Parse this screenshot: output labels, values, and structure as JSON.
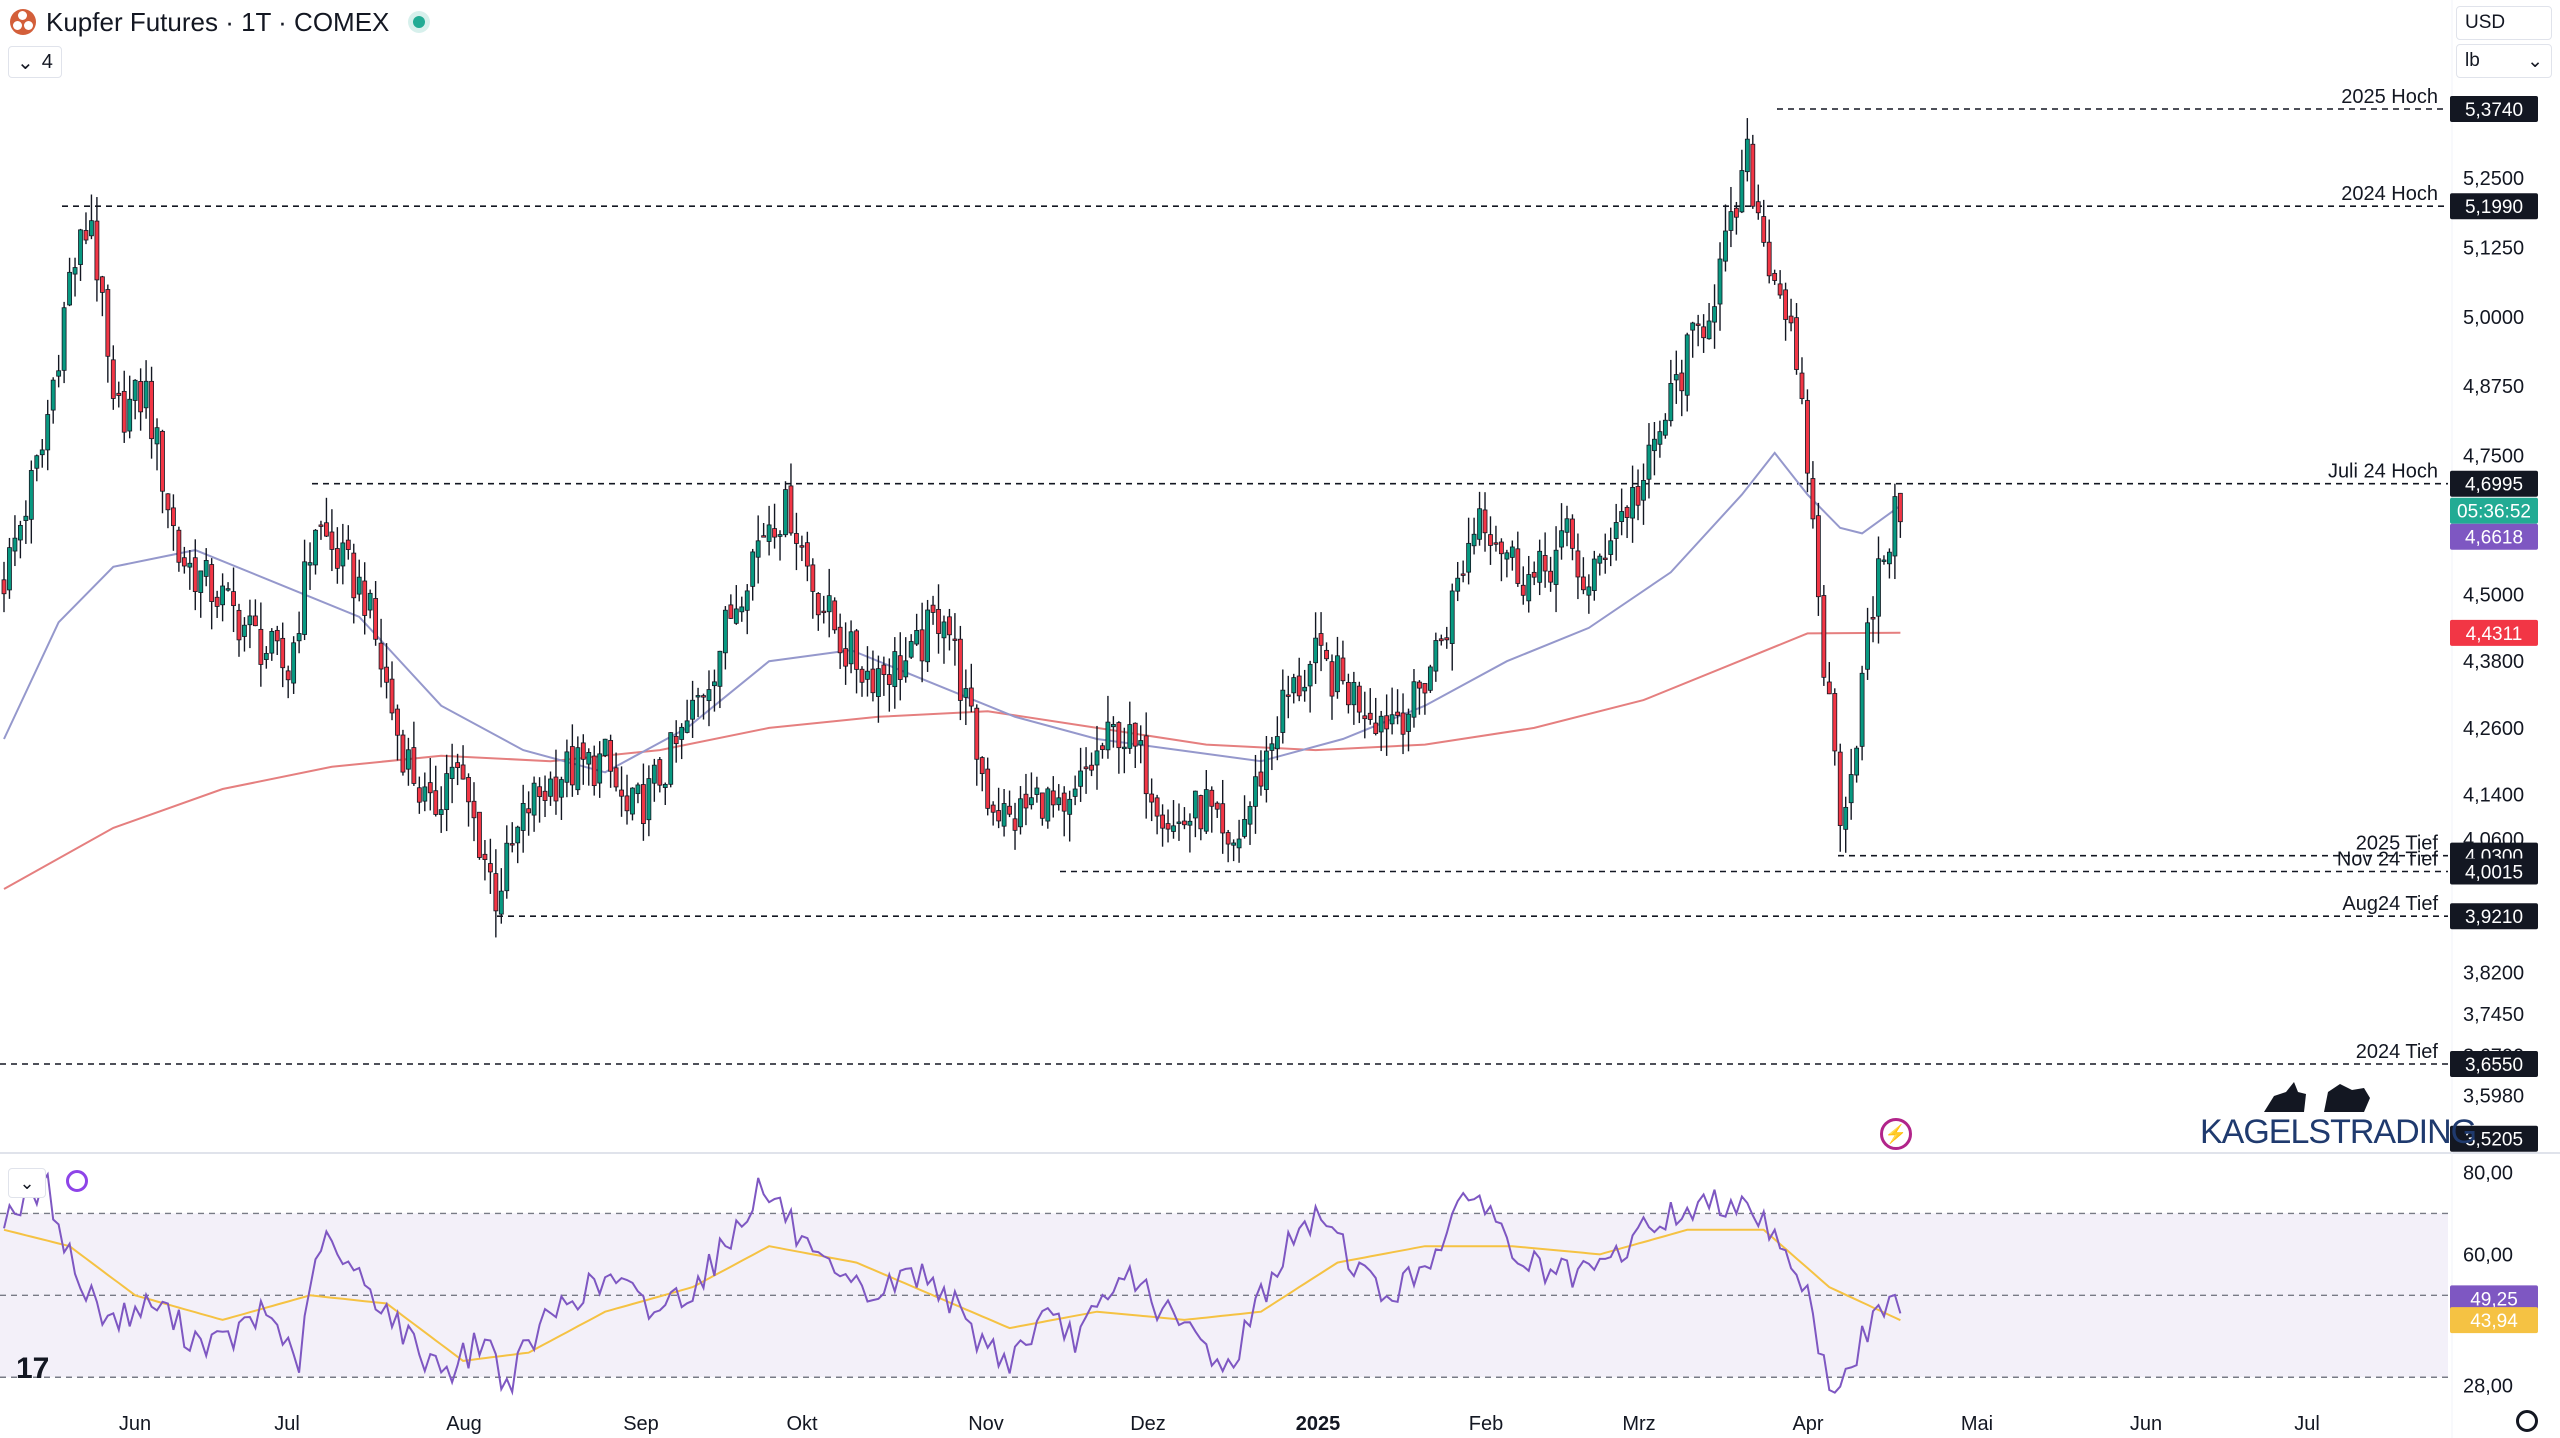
{
  "header": {
    "title": "Kupfer Futures · 1T · COMEX",
    "indicator_count": "4"
  },
  "currency": "USD",
  "unit": "lb",
  "colors": {
    "up": "#089981",
    "down": "#f23645",
    "ma_short": "#9598cc",
    "ma_long": "#e57f7f",
    "rsi": "#7e57c2",
    "rsi_ma": "#f5c243"
  },
  "chart_data": [
    {
      "type": "candlestick",
      "title": "Kupfer Futures",
      "interval": "1T",
      "exchange": "COMEX",
      "ylim": [
        3.52,
        5.374
      ],
      "y_ticks": [
        "5,2500",
        "5,1250",
        "5,0000",
        "4,8750",
        "4,7500",
        "4,5000",
        "4,3800",
        "4,2600",
        "4,1400",
        "4,0600",
        "3,8200",
        "3,7450",
        "3,6700",
        "3,5980"
      ],
      "x_ticks": [
        "Jun",
        "Jul",
        "Aug",
        "Sep",
        "Okt",
        "Nov",
        "Dez",
        "2025",
        "Feb",
        "Mrz",
        "Apr",
        "Mai",
        "Jun",
        "Jul"
      ],
      "levels": [
        {
          "name": "2025 Hoch",
          "value": 5.374,
          "tag": "5,3740"
        },
        {
          "name": "2024 Hoch",
          "value": 5.199,
          "tag": "5,1990"
        },
        {
          "name": "Juli 24 Hoch",
          "value": 4.6995,
          "tag": "4,6995"
        },
        {
          "name": "2025 Tief",
          "value": 4.03,
          "tag": "4,0300"
        },
        {
          "name": "Nov 24 Tief",
          "value": 4.0015,
          "tag": "4,0015"
        },
        {
          "name": "Aug24 Tief",
          "value": 3.921,
          "tag": "3,9210"
        },
        {
          "name": "2024 Tief",
          "value": 3.655,
          "tag": "3,6550"
        }
      ],
      "price_tags": [
        {
          "value": 4.64,
          "text": "05:36:52",
          "color": "#22ab94"
        },
        {
          "value": 4.6618,
          "text": "4,6618",
          "color": "#7e57c2"
        },
        {
          "value": 4.4311,
          "text": "4,4311",
          "color": "#f23645"
        },
        {
          "value": 3.5205,
          "text": "3,5205",
          "color": "#131722"
        }
      ],
      "keypoints": [
        {
          "x": 0,
          "y": 4.53
        },
        {
          "x": 7,
          "y": 4.76
        },
        {
          "x": 12,
          "y": 5.07
        },
        {
          "x": 16,
          "y": 5.18
        },
        {
          "x": 20,
          "y": 4.82
        },
        {
          "x": 26,
          "y": 4.86
        },
        {
          "x": 32,
          "y": 4.57
        },
        {
          "x": 40,
          "y": 4.49
        },
        {
          "x": 48,
          "y": 4.4
        },
        {
          "x": 52,
          "y": 4.36
        },
        {
          "x": 57,
          "y": 4.63
        },
        {
          "x": 60,
          "y": 4.58
        },
        {
          "x": 66,
          "y": 4.5
        },
        {
          "x": 72,
          "y": 4.25
        },
        {
          "x": 78,
          "y": 4.1
        },
        {
          "x": 82,
          "y": 4.2
        },
        {
          "x": 87,
          "y": 4.06
        },
        {
          "x": 90,
          "y": 3.96
        },
        {
          "x": 96,
          "y": 4.12
        },
        {
          "x": 102,
          "y": 4.18
        },
        {
          "x": 110,
          "y": 4.2
        },
        {
          "x": 114,
          "y": 4.1
        },
        {
          "x": 118,
          "y": 4.14
        },
        {
          "x": 124,
          "y": 4.24
        },
        {
          "x": 130,
          "y": 4.38
        },
        {
          "x": 136,
          "y": 4.55
        },
        {
          "x": 140,
          "y": 4.64
        },
        {
          "x": 144,
          "y": 4.65
        },
        {
          "x": 148,
          "y": 4.52
        },
        {
          "x": 154,
          "y": 4.4
        },
        {
          "x": 158,
          "y": 4.36
        },
        {
          "x": 166,
          "y": 4.38
        },
        {
          "x": 172,
          "y": 4.48
        },
        {
          "x": 176,
          "y": 4.3
        },
        {
          "x": 180,
          "y": 4.14
        },
        {
          "x": 184,
          "y": 4.09
        },
        {
          "x": 190,
          "y": 4.14
        },
        {
          "x": 194,
          "y": 4.08
        },
        {
          "x": 198,
          "y": 4.18
        },
        {
          "x": 204,
          "y": 4.26
        },
        {
          "x": 208,
          "y": 4.2
        },
        {
          "x": 214,
          "y": 4.08
        },
        {
          "x": 220,
          "y": 4.12
        },
        {
          "x": 224,
          "y": 4.02
        },
        {
          "x": 228,
          "y": 4.12
        },
        {
          "x": 234,
          "y": 4.3
        },
        {
          "x": 240,
          "y": 4.38
        },
        {
          "x": 246,
          "y": 4.33
        },
        {
          "x": 252,
          "y": 4.28
        },
        {
          "x": 258,
          "y": 4.3
        },
        {
          "x": 264,
          "y": 4.45
        },
        {
          "x": 270,
          "y": 4.66
        },
        {
          "x": 276,
          "y": 4.56
        },
        {
          "x": 280,
          "y": 4.52
        },
        {
          "x": 286,
          "y": 4.6
        },
        {
          "x": 290,
          "y": 4.5
        },
        {
          "x": 294,
          "y": 4.62
        },
        {
          "x": 300,
          "y": 4.7
        },
        {
          "x": 306,
          "y": 4.88
        },
        {
          "x": 312,
          "y": 5.02
        },
        {
          "x": 316,
          "y": 5.15
        },
        {
          "x": 319,
          "y": 5.28
        },
        {
          "x": 322,
          "y": 5.14
        },
        {
          "x": 326,
          "y": 5.02
        },
        {
          "x": 330,
          "y": 4.74
        },
        {
          "x": 333,
          "y": 4.38
        },
        {
          "x": 336,
          "y": 4.12
        },
        {
          "x": 338,
          "y": 4.18
        },
        {
          "x": 341,
          "y": 4.42
        },
        {
          "x": 344,
          "y": 4.58
        },
        {
          "x": 347,
          "y": 4.66
        }
      ],
      "ma_short_points": [
        {
          "x": 0,
          "y": 4.24
        },
        {
          "x": 10,
          "y": 4.45
        },
        {
          "x": 20,
          "y": 4.55
        },
        {
          "x": 35,
          "y": 4.58
        },
        {
          "x": 50,
          "y": 4.52
        },
        {
          "x": 65,
          "y": 4.46
        },
        {
          "x": 80,
          "y": 4.3
        },
        {
          "x": 95,
          "y": 4.22
        },
        {
          "x": 110,
          "y": 4.18
        },
        {
          "x": 125,
          "y": 4.26
        },
        {
          "x": 140,
          "y": 4.38
        },
        {
          "x": 155,
          "y": 4.4
        },
        {
          "x": 170,
          "y": 4.34
        },
        {
          "x": 185,
          "y": 4.28
        },
        {
          "x": 200,
          "y": 4.24
        },
        {
          "x": 215,
          "y": 4.22
        },
        {
          "x": 230,
          "y": 4.2
        },
        {
          "x": 245,
          "y": 4.24
        },
        {
          "x": 260,
          "y": 4.3
        },
        {
          "x": 275,
          "y": 4.38
        },
        {
          "x": 290,
          "y": 4.44
        },
        {
          "x": 305,
          "y": 4.54
        },
        {
          "x": 318,
          "y": 4.68
        },
        {
          "x": 324,
          "y": 4.755
        },
        {
          "x": 330,
          "y": 4.68
        },
        {
          "x": 336,
          "y": 4.62
        },
        {
          "x": 340,
          "y": 4.61
        },
        {
          "x": 347,
          "y": 4.66
        }
      ],
      "ma_long_points": [
        {
          "x": 0,
          "y": 3.97
        },
        {
          "x": 20,
          "y": 4.08
        },
        {
          "x": 40,
          "y": 4.15
        },
        {
          "x": 60,
          "y": 4.19
        },
        {
          "x": 80,
          "y": 4.21
        },
        {
          "x": 100,
          "y": 4.2
        },
        {
          "x": 120,
          "y": 4.22
        },
        {
          "x": 140,
          "y": 4.26
        },
        {
          "x": 160,
          "y": 4.28
        },
        {
          "x": 180,
          "y": 4.29
        },
        {
          "x": 200,
          "y": 4.26
        },
        {
          "x": 220,
          "y": 4.23
        },
        {
          "x": 240,
          "y": 4.22
        },
        {
          "x": 260,
          "y": 4.23
        },
        {
          "x": 280,
          "y": 4.26
        },
        {
          "x": 300,
          "y": 4.31
        },
        {
          "x": 315,
          "y": 4.37
        },
        {
          "x": 330,
          "y": 4.43
        },
        {
          "x": 347,
          "y": 4.4311
        }
      ]
    },
    {
      "type": "line",
      "title": "RSI",
      "ylim": [
        22,
        85
      ],
      "y_ticks": [
        "80,00",
        "60,00",
        "28,00"
      ],
      "bands": [
        70,
        50,
        30
      ],
      "price_tags": [
        {
          "value": 49.25,
          "text": "49,25",
          "color": "#7e57c2"
        },
        {
          "value": 43.94,
          "text": "43,94",
          "color": "#f5c243"
        }
      ],
      "rsi_points": [
        {
          "x": 0,
          "y": 70
        },
        {
          "x": 8,
          "y": 76
        },
        {
          "x": 14,
          "y": 52
        },
        {
          "x": 20,
          "y": 44
        },
        {
          "x": 28,
          "y": 48
        },
        {
          "x": 34,
          "y": 40
        },
        {
          "x": 40,
          "y": 38
        },
        {
          "x": 48,
          "y": 46
        },
        {
          "x": 54,
          "y": 34
        },
        {
          "x": 58,
          "y": 64
        },
        {
          "x": 62,
          "y": 58
        },
        {
          "x": 68,
          "y": 50
        },
        {
          "x": 76,
          "y": 36
        },
        {
          "x": 82,
          "y": 32
        },
        {
          "x": 88,
          "y": 40
        },
        {
          "x": 92,
          "y": 28
        },
        {
          "x": 98,
          "y": 42
        },
        {
          "x": 104,
          "y": 50
        },
        {
          "x": 112,
          "y": 54
        },
        {
          "x": 118,
          "y": 46
        },
        {
          "x": 126,
          "y": 52
        },
        {
          "x": 132,
          "y": 62
        },
        {
          "x": 138,
          "y": 76
        },
        {
          "x": 142,
          "y": 72
        },
        {
          "x": 148,
          "y": 58
        },
        {
          "x": 154,
          "y": 52
        },
        {
          "x": 160,
          "y": 50
        },
        {
          "x": 166,
          "y": 56
        },
        {
          "x": 172,
          "y": 52
        },
        {
          "x": 176,
          "y": 42
        },
        {
          "x": 180,
          "y": 38
        },
        {
          "x": 184,
          "y": 34
        },
        {
          "x": 190,
          "y": 44
        },
        {
          "x": 196,
          "y": 40
        },
        {
          "x": 202,
          "y": 48
        },
        {
          "x": 206,
          "y": 56
        },
        {
          "x": 212,
          "y": 46
        },
        {
          "x": 218,
          "y": 40
        },
        {
          "x": 224,
          "y": 32
        },
        {
          "x": 230,
          "y": 50
        },
        {
          "x": 236,
          "y": 64
        },
        {
          "x": 242,
          "y": 70
        },
        {
          "x": 246,
          "y": 60
        },
        {
          "x": 252,
          "y": 50
        },
        {
          "x": 258,
          "y": 54
        },
        {
          "x": 264,
          "y": 66
        },
        {
          "x": 270,
          "y": 76
        },
        {
          "x": 276,
          "y": 60
        },
        {
          "x": 282,
          "y": 56
        },
        {
          "x": 288,
          "y": 54
        },
        {
          "x": 294,
          "y": 58
        },
        {
          "x": 300,
          "y": 66
        },
        {
          "x": 306,
          "y": 70
        },
        {
          "x": 312,
          "y": 72
        },
        {
          "x": 318,
          "y": 74
        },
        {
          "x": 322,
          "y": 68
        },
        {
          "x": 326,
          "y": 62
        },
        {
          "x": 330,
          "y": 50
        },
        {
          "x": 333,
          "y": 32
        },
        {
          "x": 336,
          "y": 26
        },
        {
          "x": 339,
          "y": 36
        },
        {
          "x": 342,
          "y": 44
        },
        {
          "x": 347,
          "y": 49.25
        }
      ],
      "rsi_ma_points": [
        {
          "x": 0,
          "y": 66
        },
        {
          "x": 12,
          "y": 62
        },
        {
          "x": 24,
          "y": 50
        },
        {
          "x": 40,
          "y": 44
        },
        {
          "x": 56,
          "y": 50
        },
        {
          "x": 70,
          "y": 48
        },
        {
          "x": 84,
          "y": 34
        },
        {
          "x": 96,
          "y": 36
        },
        {
          "x": 110,
          "y": 46
        },
        {
          "x": 126,
          "y": 52
        },
        {
          "x": 140,
          "y": 62
        },
        {
          "x": 156,
          "y": 58
        },
        {
          "x": 170,
          "y": 50
        },
        {
          "x": 184,
          "y": 42
        },
        {
          "x": 200,
          "y": 46
        },
        {
          "x": 216,
          "y": 44
        },
        {
          "x": 230,
          "y": 46
        },
        {
          "x": 244,
          "y": 58
        },
        {
          "x": 260,
          "y": 62
        },
        {
          "x": 276,
          "y": 62
        },
        {
          "x": 292,
          "y": 60
        },
        {
          "x": 308,
          "y": 66
        },
        {
          "x": 322,
          "y": 66
        },
        {
          "x": 334,
          "y": 52
        },
        {
          "x": 347,
          "y": 43.94
        }
      ]
    }
  ],
  "watermark": "KAGELSTRADING",
  "tv_logo": "17"
}
